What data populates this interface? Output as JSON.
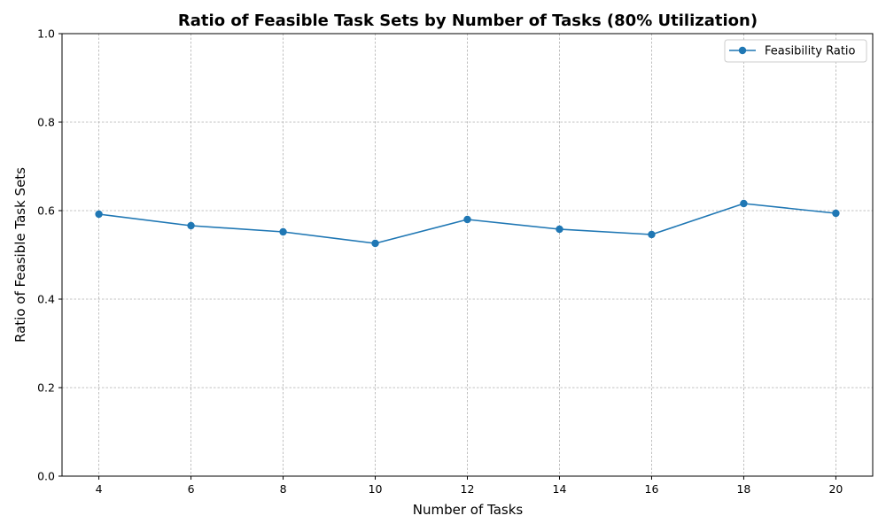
{
  "chart_data": {
    "type": "line",
    "title": "Ratio of Feasible Task Sets by Number of Tasks (80% Utilization)",
    "xlabel": "Number of Tasks",
    "ylabel": "Ratio of Feasible Task Sets",
    "x": [
      4,
      6,
      8,
      10,
      12,
      14,
      16,
      18,
      20
    ],
    "series": [
      {
        "name": "Feasibility Ratio",
        "values": [
          0.592,
          0.566,
          0.552,
          0.526,
          0.58,
          0.558,
          0.546,
          0.616,
          0.594
        ],
        "color": "#1f77b4",
        "marker": "circle"
      }
    ],
    "xlim": [
      3.2,
      20.8
    ],
    "ylim": [
      0,
      1
    ],
    "xticks": [
      4,
      6,
      8,
      10,
      12,
      14,
      16,
      18,
      20
    ],
    "xtick_labels": [
      "4",
      "6",
      "8",
      "10",
      "12",
      "14",
      "16",
      "18",
      "20"
    ],
    "yticks": [
      0,
      0.2,
      0.4,
      0.6,
      0.8,
      1.0
    ],
    "ytick_labels": [
      "0.0",
      "0.2",
      "0.4",
      "0.6",
      "0.8",
      "1.0"
    ],
    "grid": true,
    "legend_position": "top-right"
  }
}
